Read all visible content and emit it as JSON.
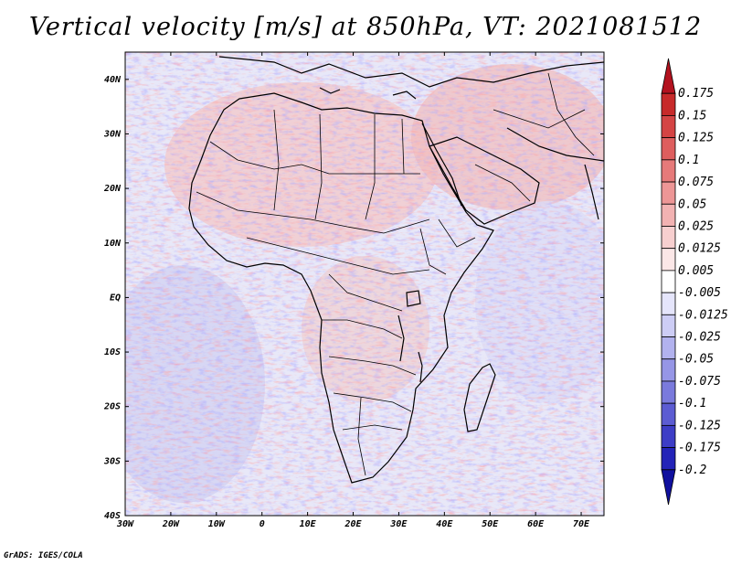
{
  "title": "Vertical velocity [m/s] at 850hPa, VT: 2021081512",
  "credit": "GrADS: IGES/COLA",
  "variable": "vertical velocity",
  "units": "m/s",
  "level": "850hPa",
  "valid_time": "2021081512",
  "lat_labels": [
    "40N",
    "30N",
    "20N",
    "10N",
    "EQ",
    "10S",
    "20S",
    "30S",
    "40S"
  ],
  "lon_labels": [
    "30W",
    "20W",
    "10W",
    "0",
    "10E",
    "20E",
    "30E",
    "40E",
    "50E",
    "60E",
    "70E"
  ],
  "colorbar": {
    "labels": [
      "0.175",
      "0.15",
      "0.125",
      "0.1",
      "0.075",
      "0.05",
      "0.025",
      "0.0125",
      "0.005",
      "-0.005",
      "-0.0125",
      "-0.025",
      "-0.05",
      "-0.075",
      "-0.1",
      "-0.125",
      "-0.175",
      "-0.2"
    ],
    "colors": [
      "#b3121f",
      "#c72a2a",
      "#d44444",
      "#de5e5e",
      "#e67a7a",
      "#ed9696",
      "#f2b2b2",
      "#f7cfcf",
      "#fbe7e7",
      "#ffffff",
      "#e5e5fb",
      "#cdcdf5",
      "#b2b2ee",
      "#9696e6",
      "#7a7adc",
      "#5c5cd2",
      "#3d3dc6",
      "#2323b8",
      "#10109e"
    ]
  }
}
